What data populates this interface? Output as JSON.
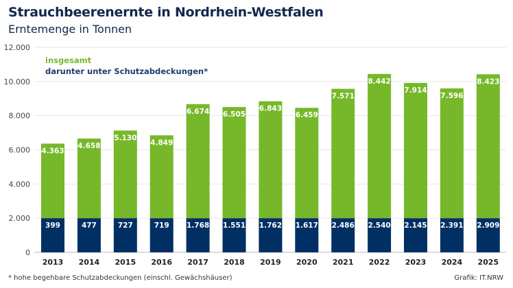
{
  "title": "Strauchbeerenernte in Nordrhein-Westfalen",
  "subtitle": "Erntemenge in Tonnen",
  "footnote": "*  hohe begehbare Schutzabdeckungen (einschl. Gewächshäuser)",
  "source": "Grafik: IT.NRW",
  "chart_data": {
    "type": "bar",
    "stacked": true,
    "title": "Strauchbeerenernte in Nordrhein-Westfalen",
    "subtitle": "Erntemenge in Tonnen",
    "categories": [
      "2013",
      "2014",
      "2015",
      "2016",
      "2017",
      "2018",
      "2019",
      "2020",
      "2021",
      "2022",
      "2023",
      "2024",
      "2025"
    ],
    "series": [
      {
        "name": "darunter unter Schutzabdeckungen*",
        "color": "#003063",
        "values": [
          399,
          477,
          727,
          719,
          1768,
          1551,
          1762,
          1617,
          2486,
          2540,
          2145,
          2391,
          2909
        ],
        "labels": [
          "399",
          "477",
          "727",
          "719",
          "1.768",
          "1.551",
          "1.762",
          "1.617",
          "2.486",
          "2.540",
          "2.145",
          "2.391",
          "2.909"
        ]
      },
      {
        "name": "insgesamt",
        "color": "#76b82a",
        "values": [
          4363,
          4658,
          5130,
          4849,
          6674,
          6505,
          6843,
          6459,
          7571,
          8442,
          7914,
          7596,
          8423
        ],
        "labels": [
          "4.363",
          "4.658",
          "5.130",
          "4.849",
          "6.674",
          "6.505",
          "6.843",
          "6.459",
          "7.571",
          "8.442",
          "7.914",
          "7.596",
          "8.423"
        ]
      }
    ],
    "ylim": [
      0,
      12000
    ],
    "yticks": [
      0,
      2000,
      4000,
      6000,
      8000,
      10000,
      12000
    ],
    "ytick_labels": [
      "0",
      "2.000",
      "4.000",
      "6.000",
      "8.000",
      "10.000",
      "12.000"
    ],
    "grid": true,
    "legend": "top-left"
  }
}
